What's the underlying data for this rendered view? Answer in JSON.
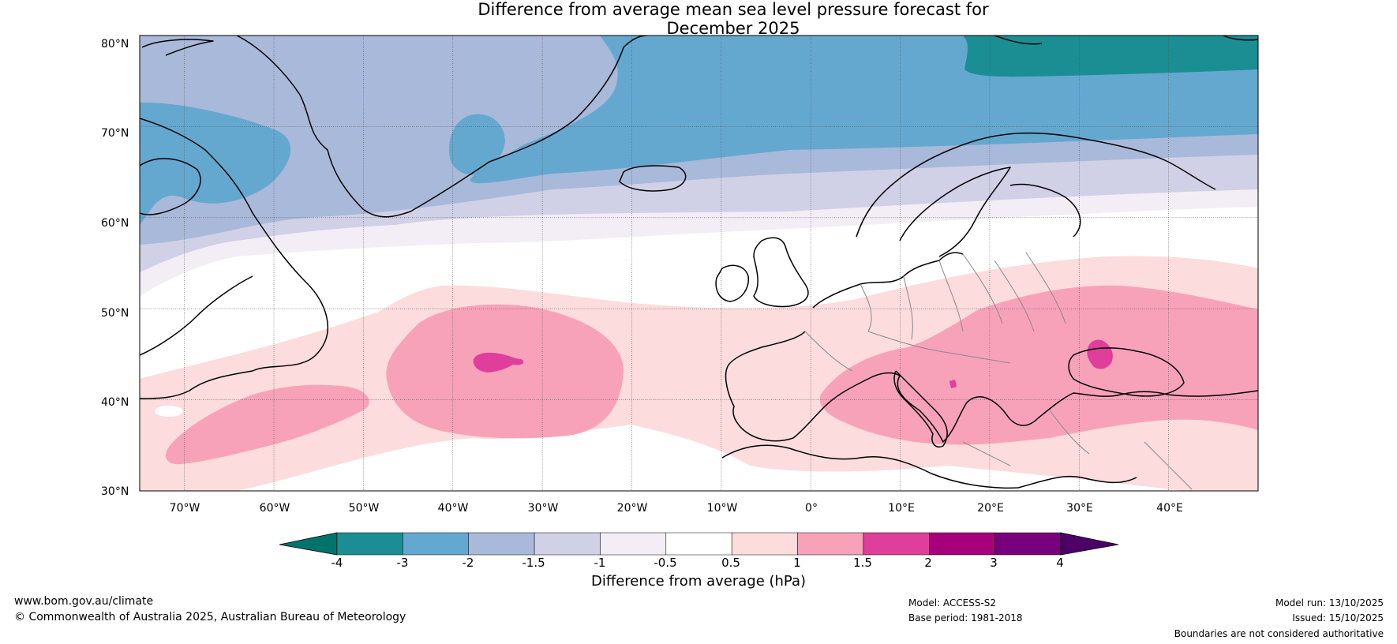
{
  "title": {
    "line1": "Difference from average mean sea level pressure forecast for",
    "line2": "December 2025"
  },
  "map": {
    "lat_range": [
      30,
      80
    ],
    "lon_range": [
      -75,
      50
    ],
    "lat_labels": [
      "80°N",
      "70°N",
      "60°N",
      "50°N",
      "40°N",
      "30°N"
    ],
    "lon_labels": [
      "70°W",
      "60°W",
      "50°W",
      "40°W",
      "30°W",
      "20°W",
      "10°W",
      "0°",
      "10°E",
      "20°E",
      "30°E",
      "40°E"
    ]
  },
  "legend": {
    "ticks": [
      "-4",
      "-3",
      "-2",
      "-1.5",
      "-1",
      "-0.5",
      "0.5",
      "1",
      "1.5",
      "2",
      "3",
      "4"
    ],
    "label": "Difference from average (hPa)",
    "colors": [
      "#1b8e94",
      "#64a8d0",
      "#a9b9da",
      "#d0d1e6",
      "#f3eef6",
      "#ffffff",
      "#fcdcdc",
      "#f8a2ba",
      "#df3e9a",
      "#a6007a",
      "#78007c"
    ],
    "under_color": "#00746a",
    "over_color": "#4c0068"
  },
  "colors": {
    "strong_low": "#1b8e94",
    "low": "#64a8d0",
    "mid_low": "#a9b9da",
    "light_low": "#d0d1e6",
    "faint_low": "#f3eef6",
    "faint_high": "#fcdcdc",
    "high": "#f8a2ba",
    "strong_high": "#df3e9a"
  },
  "footer": {
    "website": "www.bom.gov.au/climate",
    "copyright": "© Commonwealth of Australia 2025, Australian Bureau of Meteorology",
    "model": "Model: ACCESS-S2",
    "base_period": "Base period: 1981-2018",
    "model_run": "Model run: 13/10/2025",
    "issued": "Issued: 15/10/2025",
    "disclaimer": "Boundaries are not considered authoritative"
  }
}
